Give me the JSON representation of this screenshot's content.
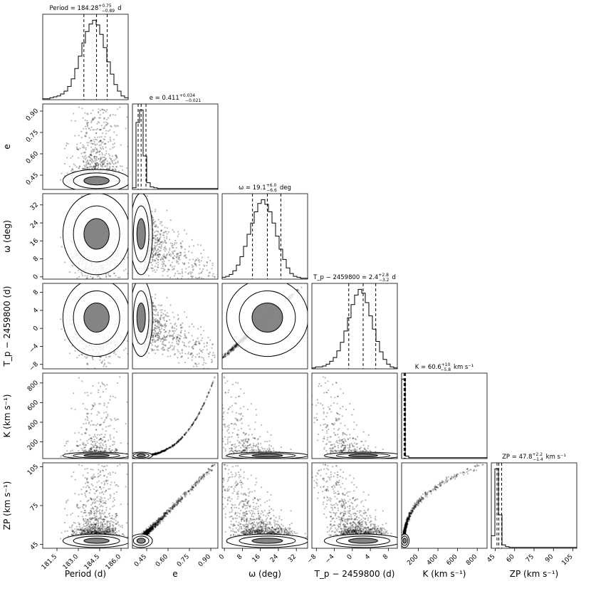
{
  "chart_data": {
    "type": "corner",
    "parameters": [
      {
        "key": "period",
        "label": "Period (d)",
        "ticks": [
          181.5,
          183.0,
          184.5,
          186.0
        ],
        "tick_labels": [
          "181.5",
          "183.0",
          "184.5",
          "186.0"
        ],
        "range": [
          180.5,
          186.5
        ],
        "title": "Period = 184.28",
        "title_sup": "+0.75",
        "title_sub": "−0.89",
        "title_unit": "d",
        "quantiles": [
          183.39,
          184.28,
          185.03
        ],
        "hist": [
          1,
          1,
          2,
          3,
          4,
          6,
          9,
          14,
          22,
          33,
          46,
          60,
          72,
          80,
          84,
          79,
          69,
          55,
          40,
          27,
          16,
          9,
          4,
          2
        ]
      },
      {
        "key": "e",
        "label": "e",
        "ticks": [
          0.45,
          0.6,
          0.75,
          0.9
        ],
        "tick_labels": [
          "0.45",
          "0.60",
          "0.75",
          "0.90"
        ],
        "range": [
          0.35,
          0.95
        ],
        "title": "e = 0.411",
        "title_sup": "+0.034",
        "title_sub": "−0.021",
        "quantiles": [
          0.39,
          0.411,
          0.445
        ],
        "hist": [
          2,
          80,
          95,
          40,
          8,
          3,
          2,
          1,
          1,
          1,
          1,
          1,
          1,
          1,
          1,
          1,
          1,
          1,
          1,
          1,
          1,
          1,
          1,
          1
        ]
      },
      {
        "key": "omega",
        "label": "ω (deg)",
        "ticks": [
          0,
          8,
          16,
          24,
          32
        ],
        "tick_labels": [
          "0",
          "8",
          "16",
          "24",
          "32"
        ],
        "range": [
          -1,
          37
        ],
        "title": "ω = 19.1",
        "title_sup": "+6.0",
        "title_sub": "−6.6",
        "title_unit": "deg",
        "quantiles": [
          12.5,
          19.1,
          25.1
        ],
        "hist": [
          2,
          3,
          5,
          9,
          15,
          24,
          35,
          48,
          60,
          72,
          81,
          85,
          80,
          72,
          60,
          46,
          32,
          21,
          12,
          6,
          3,
          2,
          1,
          1
        ]
      },
      {
        "key": "tp",
        "label": "T_p − 2459800 (d)",
        "ticks": [
          -8,
          -4,
          0,
          4,
          8
        ],
        "tick_labels": [
          "−8",
          "−4",
          "0",
          "4",
          "8"
        ],
        "range": [
          -9,
          10
        ],
        "title": "T_p − 2459800 = 2.4",
        "title_sup": "+2.8",
        "title_sub": "−3.2",
        "title_unit": "d",
        "quantiles": [
          -0.8,
          2.4,
          5.2
        ],
        "hist": [
          1,
          2,
          2,
          3,
          5,
          8,
          12,
          19,
          28,
          40,
          54,
          68,
          78,
          84,
          80,
          70,
          56,
          42,
          29,
          18,
          10,
          5,
          2,
          1
        ]
      },
      {
        "key": "k",
        "label": "K (km s⁻¹)",
        "ticks": [
          200,
          400,
          600,
          800
        ],
        "tick_labels": [
          "200",
          "400",
          "600",
          "800"
        ],
        "range": [
          30,
          900
        ],
        "title": "K = 60.6",
        "title_sup": "+10",
        "title_sub": "−5.8",
        "title_unit": "km s⁻¹",
        "quantiles": [
          54.8,
          60.6,
          70.6
        ],
        "hist": [
          95,
          3,
          1,
          1,
          1,
          1,
          1,
          1,
          1,
          1,
          1,
          1,
          1,
          1,
          1,
          1,
          1,
          1,
          1,
          1,
          1,
          1,
          1,
          1
        ]
      },
      {
        "key": "zp",
        "label": "ZP (km s⁻¹)",
        "ticks": [
          45,
          60,
          75,
          90,
          105
        ],
        "tick_labels": [
          "45",
          "60",
          "75",
          "90",
          "105"
        ],
        "range": [
          42,
          108
        ],
        "title": "ZP = 47.8",
        "title_sup": "+2.2",
        "title_sub": "−1.4",
        "title_unit": "km s⁻¹",
        "quantiles": [
          46.4,
          47.8,
          50.0
        ],
        "hist": [
          15,
          95,
          40,
          4,
          2,
          1,
          1,
          1,
          1,
          1,
          1,
          1,
          1,
          1,
          1,
          1,
          1,
          1,
          1,
          1,
          1,
          1,
          1,
          1
        ]
      }
    ],
    "ytick_overrides": {
      "e": {
        "ticks": [
          0.45,
          0.6,
          0.75,
          0.9
        ],
        "tick_labels": [
          "0.45",
          "0.60",
          "0.75",
          "0.90"
        ]
      },
      "omega": {
        "ticks": [
          0,
          8,
          16,
          24,
          32
        ],
        "tick_labels": [
          "0",
          "8",
          "16",
          "24",
          "32"
        ]
      },
      "tp": {
        "ticks": [
          -8,
          -4,
          0,
          4,
          8
        ],
        "tick_labels": [
          "−8",
          "−4",
          "0",
          "4",
          "8"
        ]
      },
      "k": {
        "ticks": [
          200,
          400,
          600,
          800
        ],
        "tick_labels": [
          "200",
          "400",
          "600",
          "800"
        ]
      },
      "zp": {
        "ticks": [
          45,
          75,
          105
        ],
        "tick_labels": [
          "45",
          "75",
          "105"
        ]
      }
    },
    "colors": {
      "ink": "#000000",
      "fill": "#555555",
      "light": "#dddddd"
    }
  }
}
